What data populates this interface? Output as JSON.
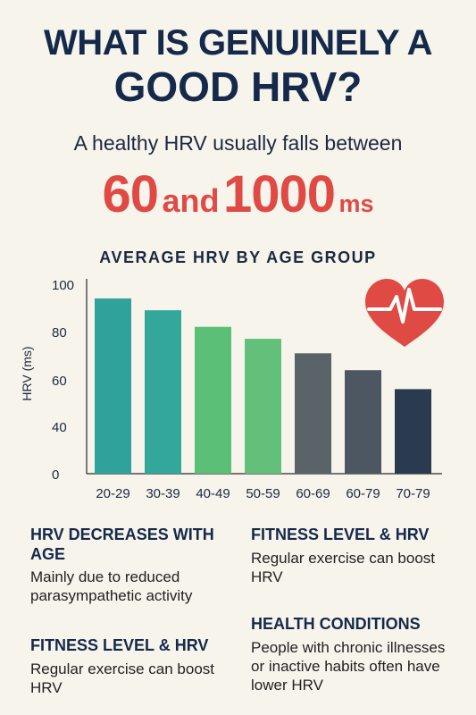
{
  "header": {
    "title_line1": "WHAT IS GENUINELY A",
    "title_line2": "GOOD HRV?",
    "subtitle": "A healthy HRV usually falls between",
    "range_low": "60",
    "range_and": "and",
    "range_high": "1000",
    "range_unit": "ms"
  },
  "chart_data": {
    "type": "bar",
    "title": "AVERAGE HRV BY AGE GROUP",
    "ylabel": "HRV (ms)",
    "categories": [
      "20-29",
      "30-39",
      "40-49",
      "50-59",
      "60-69",
      "60-79",
      "70-79"
    ],
    "values": [
      94,
      89,
      82,
      77,
      71,
      64,
      56
    ],
    "colors": [
      "#2fa39b",
      "#33a89a",
      "#5bbf78",
      "#62c07a",
      "#5a6368",
      "#4d5761",
      "#2a3b4f"
    ],
    "yticks": [
      0,
      40,
      60,
      80,
      100
    ],
    "yticks_scale": "nonlinear",
    "grid": false,
    "legend": "none",
    "icon": "heart-pulse-icon",
    "icon_color": "#e04a45"
  },
  "notes": {
    "left": [
      {
        "heading": "HRV DECREASES WITH AGE",
        "body": "Mainly due to reduced parasympathetic activity"
      },
      {
        "heading": "FITNESS LEVEL & HRV",
        "body": "Regular exercise can boost HRV"
      }
    ],
    "right": [
      {
        "heading": "FITNESS LEVEL & HRV",
        "body": "Regular exercise can boost HRV"
      },
      {
        "heading": "HEALTH CONDITIONS",
        "body": "People with chronic illnesses or inactive habits often have lower HRV"
      }
    ]
  }
}
